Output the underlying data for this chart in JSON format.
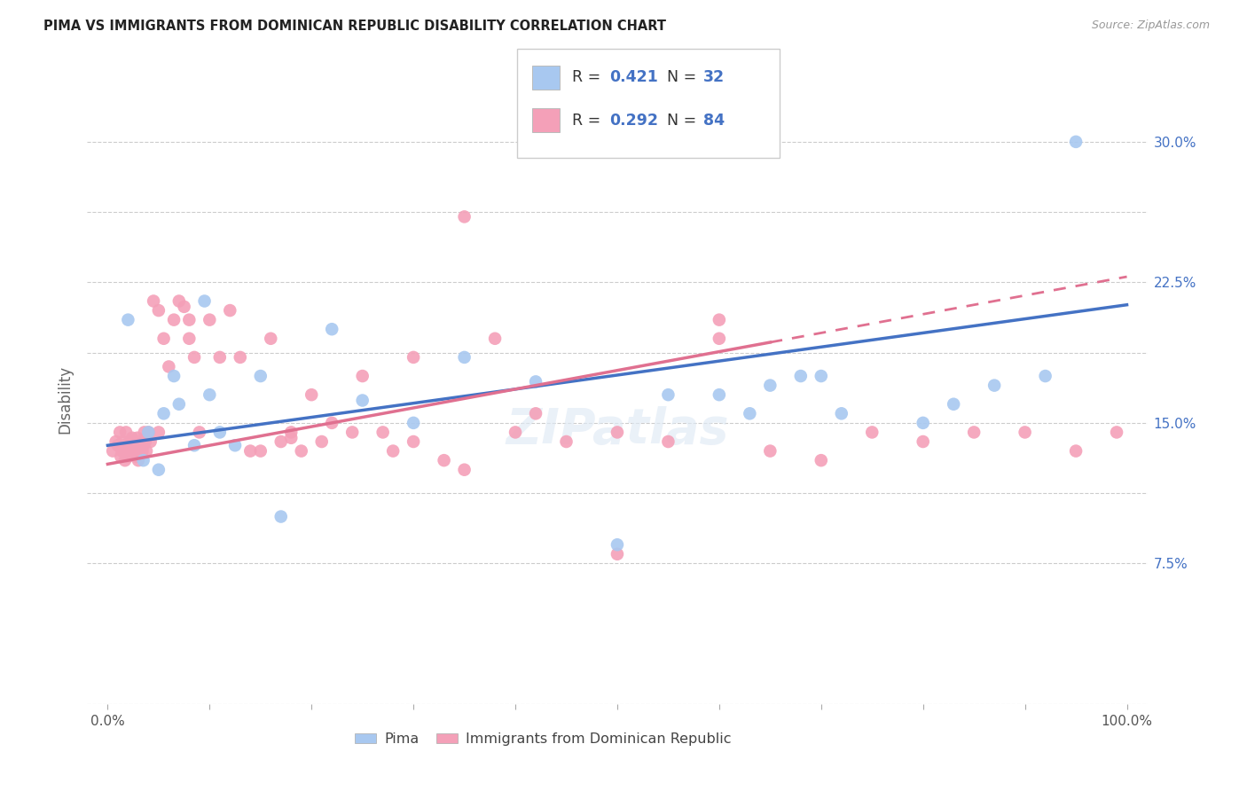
{
  "title": "PIMA VS IMMIGRANTS FROM DOMINICAN REPUBLIC DISABILITY CORRELATION CHART",
  "source": "Source: ZipAtlas.com",
  "ylabel": "Disability",
  "xlim": [
    -2,
    102
  ],
  "ylim": [
    0,
    32.5
  ],
  "xtick_positions": [
    0,
    10,
    20,
    30,
    40,
    50,
    60,
    70,
    80,
    90,
    100
  ],
  "xtick_labels": [
    "0.0%",
    "",
    "",
    "",
    "",
    "",
    "",
    "",
    "",
    "",
    "100.0%"
  ],
  "ytick_positions": [
    0,
    7.5,
    11.25,
    15.0,
    18.75,
    22.5,
    26.25,
    30.0
  ],
  "ytick_labels": [
    "",
    "7.5%",
    "",
    "15.0%",
    "",
    "22.5%",
    "",
    "30.0%"
  ],
  "blue_color": "#A8C8F0",
  "pink_color": "#F4A0B8",
  "blue_line_color": "#4472C4",
  "pink_line_color": "#E07090",
  "legend_R_blue": "0.421",
  "legend_N_blue": "32",
  "legend_R_pink": "0.292",
  "legend_N_pink": "84",
  "pima_x": [
    2.0,
    3.5,
    4.0,
    5.0,
    5.5,
    6.5,
    7.0,
    8.5,
    9.5,
    10.0,
    11.0,
    12.5,
    15.0,
    17.0,
    22.0,
    25.0,
    30.0,
    35.0,
    42.0,
    50.0,
    55.0,
    60.0,
    63.0,
    65.0,
    68.0,
    70.0,
    72.0,
    80.0,
    83.0,
    87.0,
    92.0,
    95.0
  ],
  "pima_y": [
    20.5,
    13.0,
    14.5,
    12.5,
    15.5,
    17.5,
    16.0,
    13.8,
    21.5,
    16.5,
    14.5,
    13.8,
    17.5,
    10.0,
    20.0,
    16.2,
    15.0,
    18.5,
    17.2,
    8.5,
    16.5,
    16.5,
    15.5,
    17.0,
    17.5,
    17.5,
    15.5,
    15.0,
    16.0,
    17.0,
    17.5,
    30.0
  ],
  "dr_x": [
    0.5,
    0.8,
    1.0,
    1.2,
    1.3,
    1.4,
    1.5,
    1.6,
    1.7,
    1.8,
    1.9,
    2.0,
    2.1,
    2.2,
    2.3,
    2.4,
    2.5,
    2.6,
    2.7,
    2.8,
    2.9,
    3.0,
    3.1,
    3.2,
    3.3,
    3.4,
    3.5,
    3.6,
    3.7,
    3.8,
    4.0,
    4.2,
    4.5,
    5.0,
    5.5,
    6.0,
    6.5,
    7.0,
    7.5,
    8.0,
    8.5,
    9.0,
    10.0,
    11.0,
    12.0,
    13.0,
    14.0,
    15.0,
    16.0,
    17.0,
    18.0,
    19.0,
    20.0,
    21.0,
    22.0,
    24.0,
    25.0,
    27.0,
    28.0,
    30.0,
    33.0,
    35.0,
    38.0,
    40.0,
    42.0,
    45.0,
    50.0,
    55.0,
    60.0,
    65.0,
    70.0,
    75.0,
    80.0,
    85.0,
    90.0,
    95.0,
    99.0,
    30.0,
    18.0,
    60.0,
    35.0,
    50.0,
    5.0,
    8.0
  ],
  "dr_y": [
    13.5,
    14.0,
    13.8,
    14.5,
    13.2,
    13.5,
    14.0,
    13.8,
    13.0,
    14.5,
    13.5,
    13.2,
    13.8,
    14.0,
    13.5,
    14.2,
    13.8,
    14.0,
    13.5,
    13.2,
    14.2,
    13.0,
    13.5,
    14.0,
    13.8,
    13.5,
    13.8,
    14.5,
    14.0,
    13.5,
    14.5,
    14.0,
    21.5,
    14.5,
    19.5,
    18.0,
    20.5,
    21.5,
    21.2,
    19.5,
    18.5,
    14.5,
    20.5,
    18.5,
    21.0,
    18.5,
    13.5,
    13.5,
    19.5,
    14.0,
    14.5,
    13.5,
    16.5,
    14.0,
    15.0,
    14.5,
    17.5,
    14.5,
    13.5,
    14.0,
    13.0,
    26.0,
    19.5,
    14.5,
    15.5,
    14.0,
    8.0,
    14.0,
    19.5,
    13.5,
    13.0,
    14.5,
    14.0,
    14.5,
    14.5,
    13.5,
    14.5,
    18.5,
    14.2,
    20.5,
    12.5,
    14.5,
    21.0,
    20.5
  ]
}
